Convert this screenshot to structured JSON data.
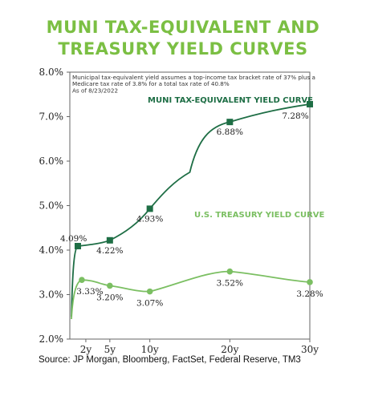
{
  "title_line1": "MUNI TAX-EQUIVALENT AND",
  "title_line2": "TREASURY YIELD CURVES",
  "note_lines": [
    "Municipal tax-equivalent yield assumes a top-income tax bracket rate of 37% plus a",
    "Medicare tax rate of 3.8% for a total tax rate of 40.8%",
    "As of 8/23/2022"
  ],
  "source": "Source: JP Morgan, Bloomberg, FactSet, Federal Reserve, TM3",
  "colors": {
    "muni": "#1e6e45",
    "treasury": "#7bbf62",
    "title": "#7bbf43"
  },
  "chart_data": {
    "type": "line",
    "ylim": [
      2.0,
      8.0
    ],
    "xlim": [
      0,
      30
    ],
    "y_ticks": [
      {
        "value": 2.0,
        "label": "2.0%"
      },
      {
        "value": 3.0,
        "label": "3.0%"
      },
      {
        "value": 4.0,
        "label": "4.0%"
      },
      {
        "value": 5.0,
        "label": "5.0%"
      },
      {
        "value": 6.0,
        "label": "6.0%"
      },
      {
        "value": 7.0,
        "label": "7.0%"
      },
      {
        "value": 8.0,
        "label": "8.0%"
      }
    ],
    "x_ticks": [
      {
        "value": 2,
        "label": "2y"
      },
      {
        "value": 5,
        "label": "5y"
      },
      {
        "value": 10,
        "label": "10y"
      },
      {
        "value": 20,
        "label": "20y"
      },
      {
        "value": 30,
        "label": "30y"
      }
    ],
    "series": [
      {
        "name": "MUNI TAX-EQUIVALENT YIELD CURVE",
        "marker": "square",
        "curve_start": {
          "x": 0.2,
          "y": 2.5
        },
        "points": [
          {
            "x": 1,
            "y": 4.09,
            "label": "4.09%"
          },
          {
            "x": 5,
            "y": 4.22,
            "label": "4.22%"
          },
          {
            "x": 10,
            "y": 4.93,
            "label": "4.93%"
          },
          {
            "x": 20,
            "y": 6.88,
            "label": "6.88%"
          },
          {
            "x": 30,
            "y": 7.28,
            "label": "7.28%"
          }
        ]
      },
      {
        "name": "U.S. TREASURY YIELD CURVE",
        "marker": "circle",
        "curve_start": {
          "x": 0.2,
          "y": 2.45
        },
        "points": [
          {
            "x": 1.5,
            "y": 3.33,
            "label": "3.33%"
          },
          {
            "x": 5,
            "y": 3.2,
            "label": "3.20%"
          },
          {
            "x": 10,
            "y": 3.07,
            "label": "3.07%"
          },
          {
            "x": 20,
            "y": 3.52,
            "label": "3.52%"
          },
          {
            "x": 30,
            "y": 3.28,
            "label": "3.28%"
          }
        ]
      }
    ]
  }
}
